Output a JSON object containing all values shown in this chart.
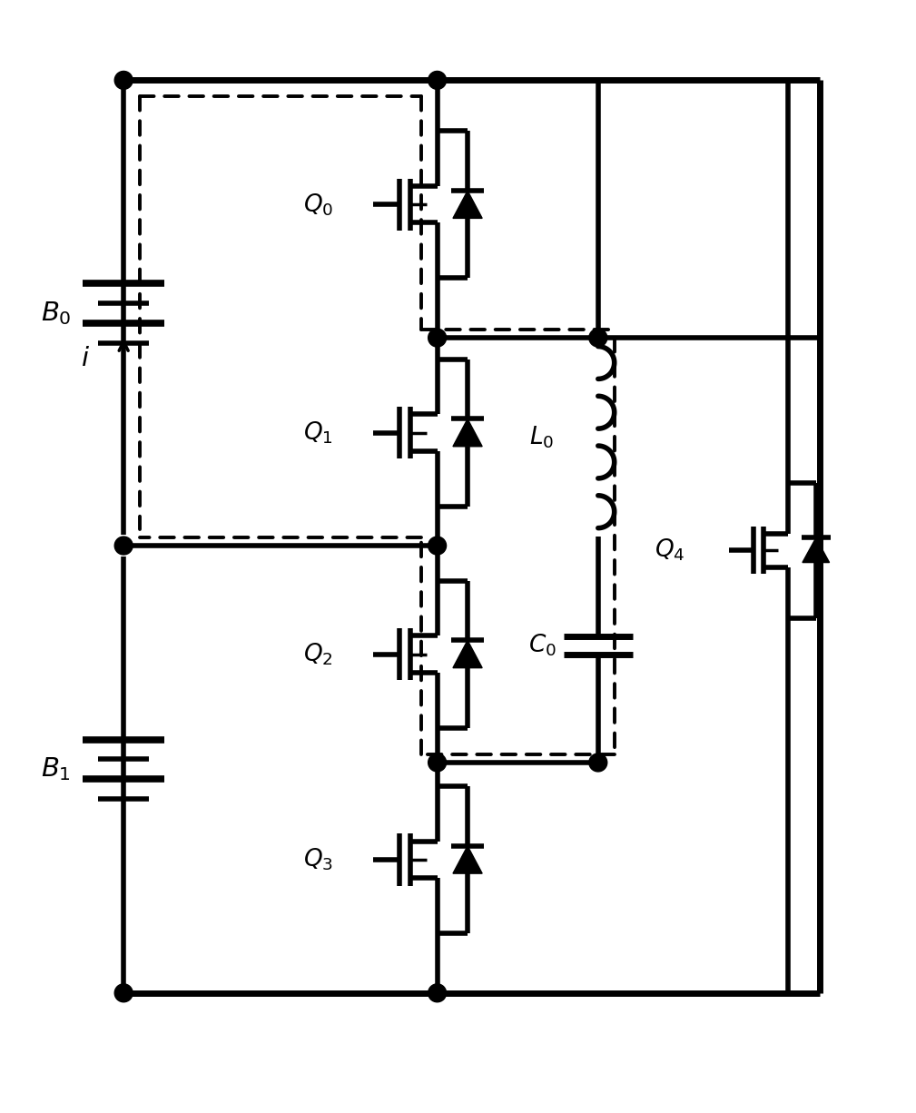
{
  "bg_color": "#ffffff",
  "lc": "#000000",
  "lw": 4.0,
  "lw_thin": 2.5,
  "dlw": 2.8,
  "figsize": [
    10.09,
    12.26
  ],
  "dpi": 100,
  "xlim": [
    0,
    10
  ],
  "ylim": [
    0,
    12.26
  ]
}
